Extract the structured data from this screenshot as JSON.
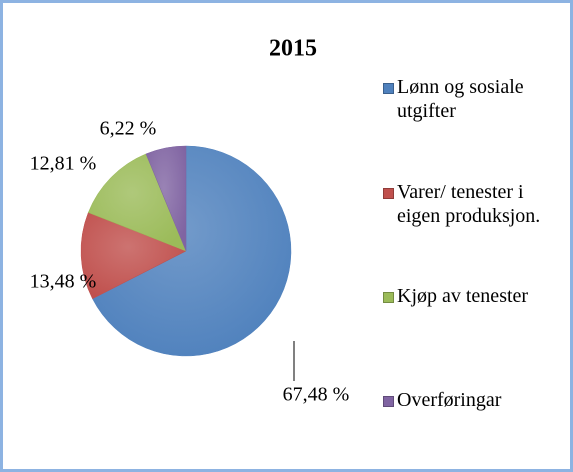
{
  "chart_data": {
    "type": "pie",
    "title": "2015",
    "categories": [
      "Lønn og sosiale utgifter",
      "Varer/ tenester i eigen produksjon.",
      "Kjøp av tenester",
      "Overføringar"
    ],
    "values": [
      67.48,
      13.48,
      12.81,
      6.22
    ],
    "value_labels": [
      "67,48 %",
      "13,48 %",
      "12,81 %",
      "6,22 %"
    ],
    "colors": [
      "#4f81bd",
      "#c0504d",
      "#9bbb59",
      "#8064a2"
    ],
    "legend": "right"
  }
}
